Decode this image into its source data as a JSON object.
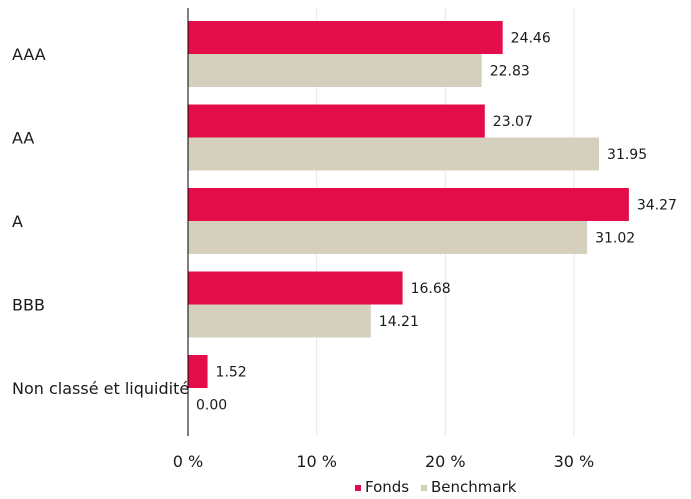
{
  "chart_data": {
    "type": "bar",
    "orientation": "horizontal",
    "categories": [
      "AAA",
      "AA",
      "A",
      "BBB",
      "Non classé et liquidité"
    ],
    "series": [
      {
        "name": "Fonds",
        "color": "#e30d4a",
        "values": [
          24.46,
          23.07,
          34.27,
          16.68,
          1.52
        ],
        "labels": [
          "24.46",
          "23.07",
          "34.27",
          "16.68",
          "1.52"
        ]
      },
      {
        "name": "Benchmark",
        "color": "#d5cfbd",
        "values": [
          22.83,
          31.95,
          31.02,
          14.21,
          0.0
        ],
        "labels": [
          "22.83",
          "31.95",
          "31.02",
          "14.21",
          "0.00"
        ]
      }
    ],
    "x_ticks": [
      0,
      10,
      20,
      30
    ],
    "x_tick_labels": [
      "0 %",
      "10 %",
      "20 %",
      "30 %"
    ],
    "xlim": [
      0,
      35.5
    ],
    "grid": true,
    "legend_position": "bottom-right",
    "title": "",
    "xlabel": "",
    "ylabel": ""
  }
}
